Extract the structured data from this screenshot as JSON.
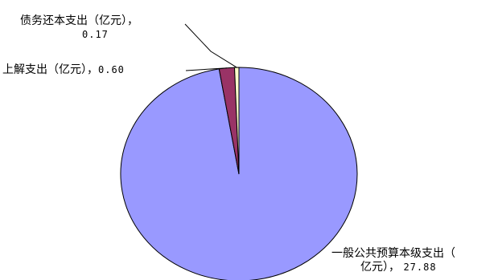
{
  "chart_data": {
    "type": "pie",
    "slices": [
      {
        "name": "一般公共预算本级支出（亿元）",
        "value": 27.88,
        "value_text": "27.88",
        "color": "#9999ff"
      },
      {
        "name": "上解支出（亿元）",
        "value": 0.6,
        "value_text": "0.60",
        "color": "#993366"
      },
      {
        "name": "债务还本支出（亿元）",
        "value": 0.17,
        "value_text": "0.17",
        "color": "#ffffcc"
      }
    ],
    "start": "12 o'clock",
    "direction": "clockwise",
    "edge_color": "#000000"
  },
  "labels": {
    "slice_0_line1": "一般公共预算本级支出（",
    "slice_0_line2": "亿元），",
    "slice_0_value": "27.88",
    "slice_1_line1": "上解支出（亿元），",
    "slice_1_value": "0.60",
    "slice_2_line1": "债务还本支出（亿元），",
    "slice_2_value": "0.17"
  }
}
